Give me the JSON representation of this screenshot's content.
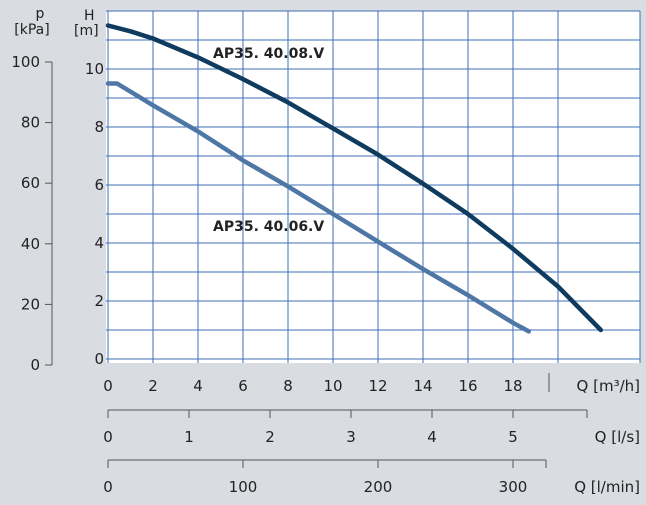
{
  "chart_data": {
    "type": "line",
    "colors": {
      "background": "#d9dde2",
      "plot_background": "#ffffff",
      "grid": "#3d6fb6",
      "axis": "#555555"
    },
    "y_axis_pressure": {
      "unit_symbol": "p",
      "unit": "[kPa]",
      "ticks": [
        "0",
        "20",
        "40",
        "60",
        "80",
        "100"
      ]
    },
    "y_axis_head": {
      "unit_symbol": "H",
      "unit": "[m]",
      "ticks": [
        "0",
        "2",
        "4",
        "6",
        "8",
        "10"
      ],
      "ylim": [
        0,
        11.5
      ]
    },
    "x_axis_flow_m3h": {
      "label": "Q [m³/h]",
      "ticks": [
        "0",
        "2",
        "4",
        "6",
        "8",
        "10",
        "12",
        "14",
        "16",
        "18"
      ],
      "xlim": [
        0,
        22.5
      ]
    },
    "x_axis_flow_ls": {
      "label": "Q [l/s]",
      "ticks": [
        "0",
        "1",
        "2",
        "3",
        "4",
        "5"
      ]
    },
    "x_axis_flow_lmin": {
      "label": "Q [l/min]",
      "ticks": [
        "0",
        "100",
        "200",
        "300"
      ]
    },
    "grid": true,
    "series": [
      {
        "name": "AP35. 40.08.V",
        "color": "#0f3b5f",
        "x": [
          0,
          1,
          2,
          4,
          6,
          8,
          10,
          12,
          14,
          16,
          18,
          20,
          21.9
        ],
        "y": [
          11.5,
          11.3,
          11.05,
          10.4,
          9.65,
          8.85,
          7.95,
          7.05,
          6.05,
          5.0,
          3.8,
          2.5,
          1.0
        ]
      },
      {
        "name": "AP35. 40.06.V",
        "color": "#4f77a6",
        "x": [
          0,
          0.4,
          2,
          4,
          6,
          8,
          10,
          12,
          14,
          16,
          18,
          18.7
        ],
        "y": [
          9.5,
          9.5,
          8.75,
          7.85,
          6.85,
          5.95,
          5.0,
          4.05,
          3.1,
          2.2,
          1.25,
          0.95
        ]
      }
    ]
  }
}
